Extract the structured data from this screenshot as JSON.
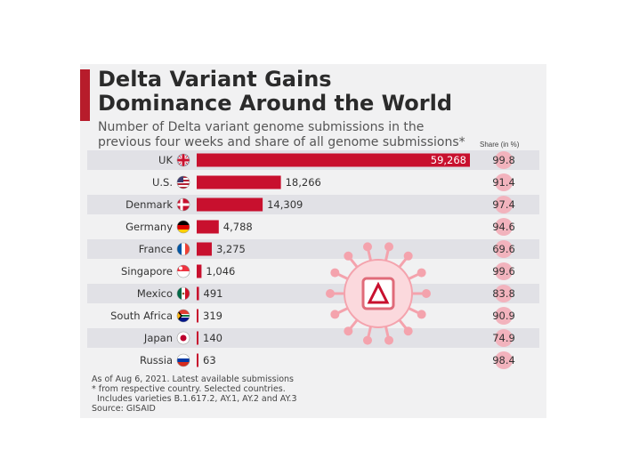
{
  "header": {
    "title_line1": "Delta Variant Gains",
    "title_line2": "Dominance Around the World",
    "subtitle_line1": "Number of Delta variant genome submissions in the",
    "subtitle_line2": "previous four weeks and share of all genome submissions*",
    "share_header": "Share (in %)"
  },
  "colors": {
    "bar": "#c8102e",
    "accent": "#b71c2b",
    "share_circle": "#f2b3bd",
    "virus": "#f4a3ad"
  },
  "chart_data": {
    "type": "bar",
    "orientation": "horizontal",
    "categories": [
      "UK",
      "U.S.",
      "Denmark",
      "Germany",
      "France",
      "Singapore",
      "Mexico",
      "South Africa",
      "Japan",
      "Russia"
    ],
    "values": [
      59268,
      18266,
      14309,
      4788,
      3275,
      1046,
      491,
      319,
      140,
      63
    ],
    "value_labels": [
      "59,268",
      "18,266",
      "14,309",
      "4,788",
      "3,275",
      "1,046",
      "491",
      "319",
      "140",
      "63"
    ],
    "share_pct": [
      99.8,
      91.4,
      97.4,
      94.6,
      69.6,
      99.6,
      83.8,
      90.9,
      74.9,
      98.4
    ],
    "share_labels": [
      "99.8",
      "91.4",
      "97.4",
      "94.6",
      "69.6",
      "99.6",
      "83.8",
      "90.9",
      "74.9",
      "98.4"
    ],
    "flag_icons": [
      "uk-flag-icon",
      "us-flag-icon",
      "denmark-flag-icon",
      "germany-flag-icon",
      "france-flag-icon",
      "singapore-flag-icon",
      "mexico-flag-icon",
      "south-africa-flag-icon",
      "japan-flag-icon",
      "russia-flag-icon"
    ],
    "xlim": [
      0,
      59268
    ]
  },
  "footer": {
    "line1": "As of Aug 6, 2021. Latest available submissions",
    "line2": "* from respective country. Selected countries.",
    "line3": "  Includes varieties B.1.617.2, AY.1, AY.2 and AY.3",
    "line4": "Source: GISAID"
  }
}
